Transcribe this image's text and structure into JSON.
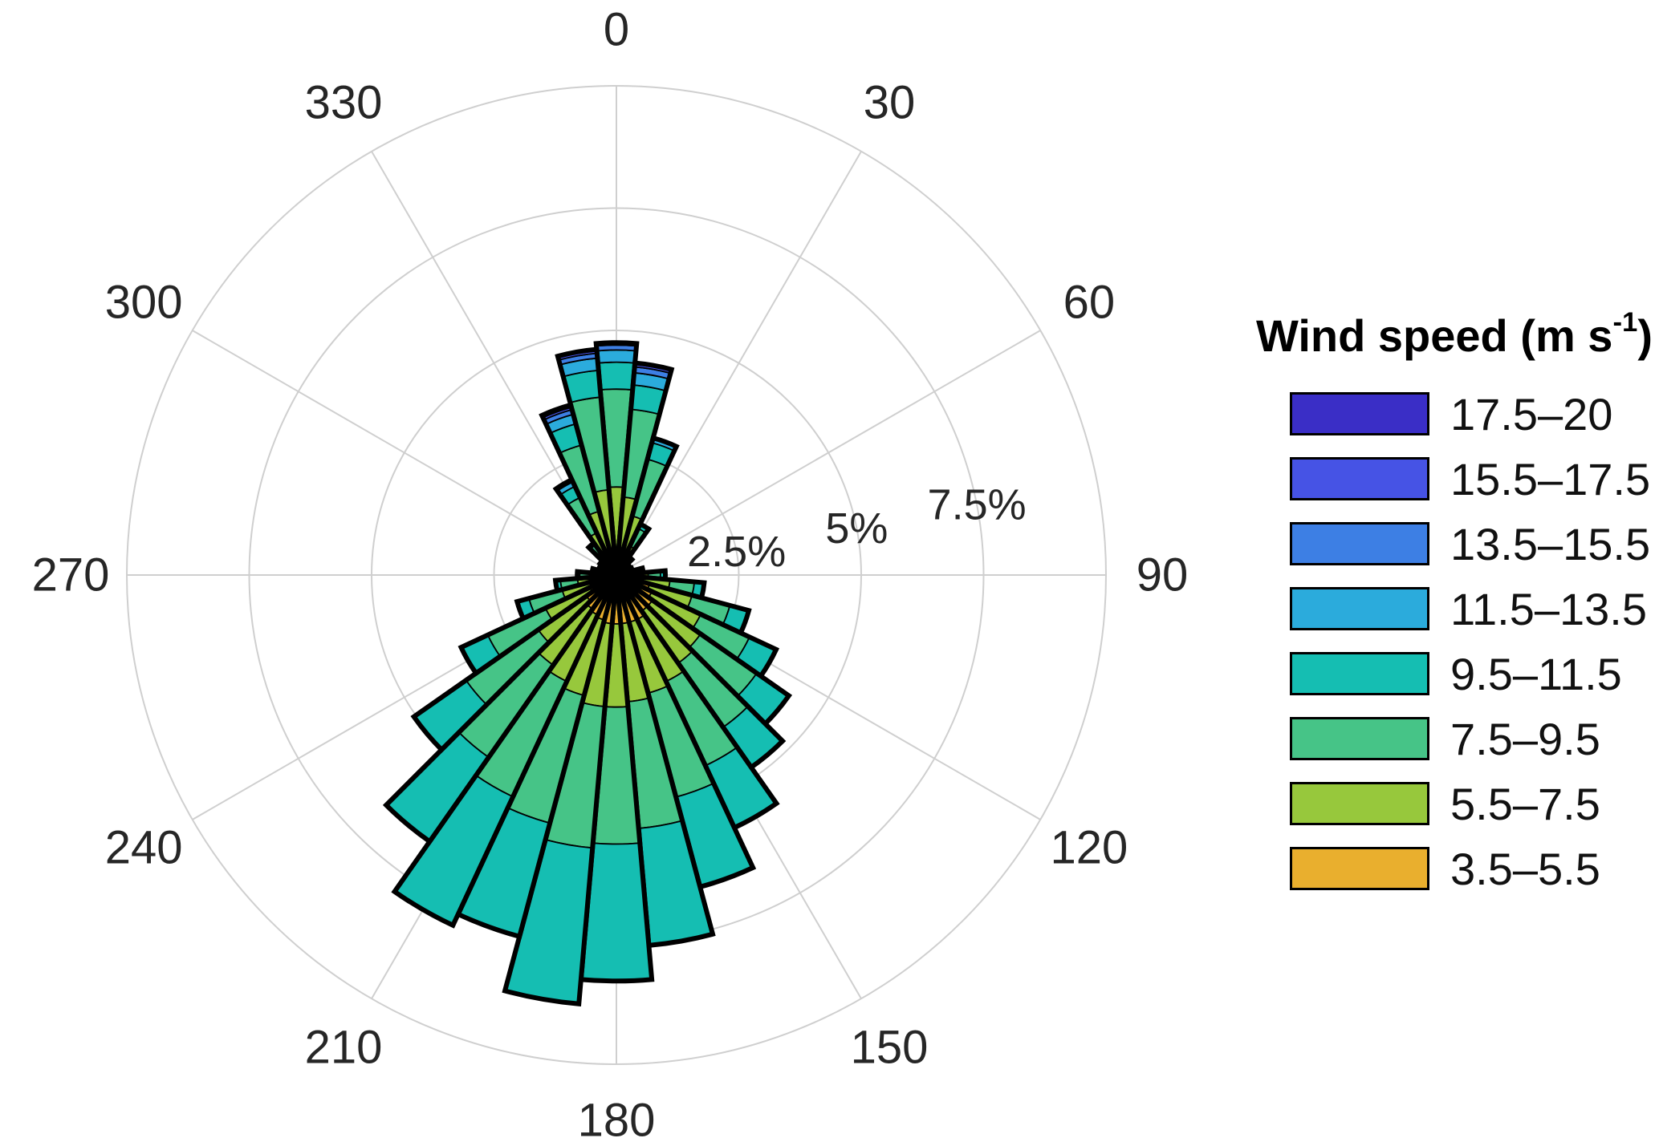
{
  "chart_data": {
    "type": "wind-rose (stacked polar bar)",
    "units": "percent frequency of wind direction",
    "sector_width_deg": 10,
    "r_axis": {
      "max": 10,
      "rings": [
        2.5,
        5,
        7.5,
        10
      ],
      "tick_labels": [
        {
          "value": 2.5,
          "label": "2.5%"
        },
        {
          "value": 5,
          "label": "5%"
        },
        {
          "value": 7.5,
          "label": "7.5%"
        }
      ],
      "label_angle_deg": 79
    },
    "angle_ticks": [
      {
        "deg": 0,
        "label": "0"
      },
      {
        "deg": 30,
        "label": "30"
      },
      {
        "deg": 60,
        "label": "60"
      },
      {
        "deg": 90,
        "label": "90"
      },
      {
        "deg": 120,
        "label": "120"
      },
      {
        "deg": 150,
        "label": "150"
      },
      {
        "deg": 180,
        "label": "180"
      },
      {
        "deg": 210,
        "label": "210"
      },
      {
        "deg": 240,
        "label": "240"
      },
      {
        "deg": 270,
        "label": "270"
      },
      {
        "deg": 300,
        "label": "300"
      },
      {
        "deg": 330,
        "label": "330"
      }
    ],
    "categories_deg": [
      0,
      10,
      20,
      30,
      40,
      50,
      60,
      70,
      80,
      90,
      100,
      110,
      120,
      130,
      140,
      150,
      160,
      170,
      180,
      190,
      200,
      210,
      220,
      230,
      240,
      250,
      260,
      270,
      280,
      290,
      300,
      310,
      320,
      330,
      340,
      350
    ],
    "series": [
      {
        "name": "3.5–5.5",
        "color": "#E9AF2E",
        "values": [
          0.55,
          0.5,
          0.4,
          0.25,
          0.15,
          0.12,
          0.1,
          0.12,
          0.18,
          0.3,
          0.5,
          0.7,
          0.8,
          0.9,
          0.9,
          1.0,
          1.0,
          1.0,
          1.0,
          1.0,
          0.95,
          0.9,
          0.85,
          0.75,
          0.6,
          0.45,
          0.35,
          0.25,
          0.18,
          0.14,
          0.1,
          0.12,
          0.2,
          0.35,
          0.45,
          0.55
        ]
      },
      {
        "name": "5.5–7.5",
        "color": "#97C83C",
        "values": [
          1.25,
          1.1,
          0.85,
          0.4,
          0.18,
          0.12,
          0.1,
          0.12,
          0.2,
          0.35,
          0.6,
          0.9,
          1.1,
          1.2,
          1.3,
          1.4,
          1.5,
          1.6,
          1.7,
          1.7,
          1.6,
          1.5,
          1.4,
          1.2,
          1.0,
          0.7,
          0.45,
          0.3,
          0.2,
          0.14,
          0.1,
          0.14,
          0.3,
          0.6,
          0.9,
          1.2
        ]
      },
      {
        "name": "7.5–9.5",
        "color": "#46C487",
        "values": [
          2.0,
          1.8,
          1.2,
          0.4,
          0.12,
          0.08,
          0.08,
          0.1,
          0.12,
          0.25,
          0.5,
          0.8,
          1.1,
          1.4,
          1.6,
          1.9,
          2.2,
          2.6,
          2.8,
          2.9,
          2.7,
          2.6,
          2.3,
          1.8,
          1.3,
          0.7,
          0.35,
          0.2,
          0.12,
          0.1,
          0.08,
          0.1,
          0.25,
          0.8,
          1.4,
          1.9
        ]
      },
      {
        "name": "9.5–11.5",
        "color": "#15BEB2",
        "values": [
          0.55,
          0.5,
          0.35,
          0.1,
          0,
          0,
          0,
          0,
          0.05,
          0.1,
          0.2,
          0.4,
          0.6,
          0.8,
          1.0,
          1.4,
          1.9,
          2.4,
          2.8,
          3.2,
          2.4,
          2.9,
          2.1,
          1.3,
          0.6,
          0.25,
          0.1,
          0.05,
          0,
          0,
          0,
          0.05,
          0.05,
          0.25,
          0.45,
          0.55
        ]
      },
      {
        "name": "11.5–13.5",
        "color": "#2BABDC",
        "values": [
          0.25,
          0.25,
          0.1,
          0,
          0,
          0,
          0,
          0,
          0,
          0,
          0,
          0,
          0,
          0,
          0,
          0,
          0,
          0,
          0,
          0,
          0,
          0,
          0,
          0,
          0,
          0,
          0,
          0,
          0,
          0,
          0,
          0,
          0,
          0.1,
          0.2,
          0.25
        ]
      },
      {
        "name": "13.5–15.5",
        "color": "#3D7FE4",
        "values": [
          0.1,
          0.12,
          0,
          0,
          0,
          0,
          0,
          0,
          0,
          0,
          0,
          0,
          0,
          0,
          0,
          0,
          0,
          0,
          0,
          0,
          0,
          0,
          0,
          0,
          0,
          0,
          0,
          0,
          0,
          0,
          0,
          0,
          0,
          0.05,
          0.1,
          0.1
        ]
      },
      {
        "name": "15.5–17.5",
        "color": "#4653E5",
        "values": [
          0.05,
          0.05,
          0,
          0,
          0,
          0,
          0,
          0,
          0,
          0,
          0,
          0,
          0,
          0,
          0,
          0,
          0,
          0,
          0,
          0,
          0,
          0,
          0,
          0,
          0,
          0,
          0,
          0,
          0,
          0,
          0,
          0,
          0,
          0,
          0.05,
          0.05
        ]
      },
      {
        "name": "17.5–20",
        "color": "#3A2EC6",
        "values": [
          0,
          0.03,
          0,
          0,
          0,
          0,
          0,
          0,
          0,
          0,
          0,
          0,
          0,
          0,
          0,
          0,
          0,
          0,
          0,
          0,
          0,
          0,
          0,
          0,
          0,
          0,
          0,
          0,
          0,
          0,
          0,
          0,
          0,
          0,
          0.05,
          0.03
        ]
      }
    ],
    "legend": {
      "title_prefix": "Wind speed (m s",
      "title_sup": "-1",
      "title_suffix": ")"
    }
  },
  "style": {
    "grid_color": "#cfcfcf",
    "outline_color": "#000000",
    "axis_text_color": "#262626"
  }
}
